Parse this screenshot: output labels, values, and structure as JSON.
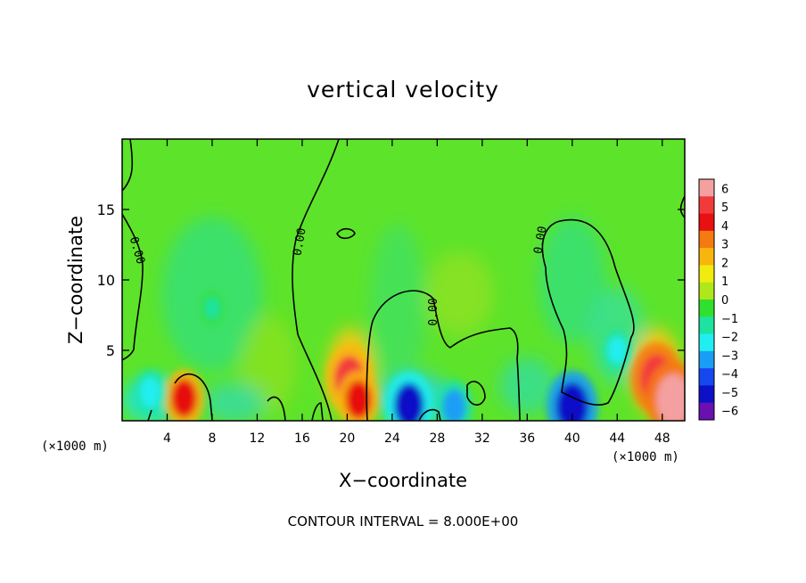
{
  "chart_data": {
    "type": "heatmap",
    "title": "vertical velocity",
    "xlabel": "X−coordinate",
    "ylabel": "Z−coordinate",
    "x_unit": "(×1000 m)",
    "x_unit_right": "(×1000 m)",
    "xlim": [
      0,
      50
    ],
    "ylim": [
      0,
      20
    ],
    "x_ticks": [
      4,
      8,
      12,
      16,
      20,
      24,
      28,
      32,
      36,
      40,
      44,
      48
    ],
    "y_ticks": [
      5,
      10,
      15
    ],
    "colorbar": {
      "min": -6,
      "max": 6,
      "labels": [
        "6",
        "5",
        "4",
        "3",
        "2",
        "1",
        "0",
        "−1",
        "−2",
        "−3",
        "−4",
        "−5",
        "−6"
      ],
      "colors": [
        "#f4a0a0",
        "#f33a3a",
        "#e81010",
        "#f57b10",
        "#f8b50e",
        "#f0ec10",
        "#aee81a",
        "#31e02e",
        "#1ee3a0",
        "#20eef0",
        "#1a9ef5",
        "#1647f0",
        "#0c10c8",
        "#6a0fb0"
      ]
    },
    "contour_label": "0.00",
    "contour_interval_text": "CONTOUR INTERVAL = 8.000E+00",
    "features": [
      {
        "x": 5.5,
        "z": 1.6,
        "value": 3.5
      },
      {
        "x": 20.2,
        "z": 3.0,
        "value": 4.5
      },
      {
        "x": 21.0,
        "z": 1.5,
        "value": 3.5
      },
      {
        "x": 47.5,
        "z": 3.0,
        "value": 5.0
      },
      {
        "x": 49.0,
        "z": 1.5,
        "value": 5.5
      },
      {
        "x": 2.5,
        "z": 2.0,
        "value": -2.3
      },
      {
        "x": 25.5,
        "z": 1.1,
        "value": -4.5
      },
      {
        "x": 29.5,
        "z": 1.0,
        "value": -3.0
      },
      {
        "x": 40.0,
        "z": 1.0,
        "value": -5.0
      },
      {
        "x": 8.0,
        "z": 8.0,
        "value": -1.0
      },
      {
        "x": 44.0,
        "z": 5.0,
        "value": -1.8
      }
    ]
  }
}
